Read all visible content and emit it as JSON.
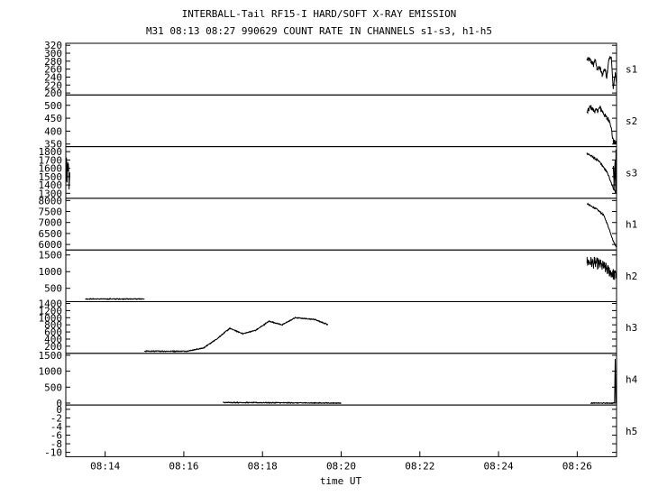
{
  "header": {
    "title": "INTERBALL-Tail RF15-I HARD/SOFT X-RAY EMISSION",
    "subtitle": "M31  08:13 08:27 990629  COUNT RATE IN CHANNELS s1-s3, h1-h5"
  },
  "chart_data": {
    "type": "line",
    "title": "INTERBALL-Tail RF15-I HARD/SOFT X-RAY EMISSION",
    "subtitle": "M31  08:13 08:27 990629  COUNT RATE IN CHANNELS s1-s3, h1-h5",
    "xlabel": "time UT",
    "x_range": [
      "08:13:00",
      "08:27:00"
    ],
    "x_ticks": [
      "08:14",
      "08:16",
      "08:18",
      "08:20",
      "08:22",
      "08:24",
      "08:26"
    ],
    "grid": false,
    "panels": [
      {
        "name": "s1",
        "ylim": [
          195,
          325
        ],
        "yticks": [
          "320",
          "300",
          "280",
          "260",
          "240",
          "220",
          "200"
        ],
        "tick_values": [
          320,
          300,
          280,
          260,
          240,
          220,
          200
        ],
        "series": [
          {
            "noise": 6,
            "points": [
              [
                "08:26:15",
                284
              ],
              [
                "08:26:20",
                283
              ],
              [
                "08:26:25",
                270
              ],
              [
                "08:26:27",
                286
              ],
              [
                "08:26:30",
                262
              ],
              [
                "08:26:35",
                262
              ],
              [
                "08:26:38",
                245
              ],
              [
                "08:26:42",
                262
              ],
              [
                "08:26:45",
                240
              ],
              [
                "08:26:48",
                284
              ],
              [
                "08:26:52",
                290
              ],
              [
                "08:26:55",
                210
              ],
              [
                "08:26:58",
                250
              ],
              [
                "08:27:00",
                222
              ]
            ]
          }
        ]
      },
      {
        "name": "s2",
        "ylim": [
          340,
          540
        ],
        "yticks": [
          "500",
          "450",
          "400",
          "350"
        ],
        "tick_values": [
          500,
          450,
          400,
          350
        ],
        "series": [
          {
            "noise": 10,
            "points": [
              [
                "08:26:15",
                470
              ],
              [
                "08:26:20",
                495
              ],
              [
                "08:26:25",
                480
              ],
              [
                "08:26:30",
                478
              ],
              [
                "08:26:35",
                490
              ],
              [
                "08:26:40",
                470
              ],
              [
                "08:26:45",
                450
              ],
              [
                "08:26:50",
                440
              ],
              [
                "08:26:55",
                360
              ],
              [
                "08:27:00",
                352
              ]
            ]
          }
        ]
      },
      {
        "name": "s3",
        "ylim": [
          1240,
          1860
        ],
        "yticks": [
          "1800",
          "1700",
          "1600",
          "1500",
          "1400",
          "1300"
        ],
        "tick_values": [
          1800,
          1700,
          1600,
          1500,
          1400,
          1300
        ],
        "series": [
          {
            "noise": 280,
            "points": [
              [
                "08:13:00",
                1550
              ],
              [
                "08:13:06",
                1550
              ]
            ]
          },
          {
            "noise": 12,
            "points": [
              [
                "08:26:15",
                1780
              ],
              [
                "08:26:25",
                1730
              ],
              [
                "08:26:35",
                1670
              ],
              [
                "08:26:40",
                1610
              ],
              [
                "08:26:45",
                1560
              ],
              [
                "08:26:50",
                1470
              ],
              [
                "08:26:55",
                1360
              ],
              [
                "08:27:00",
                1300
              ]
            ]
          },
          {
            "noise": 280,
            "points": [
              [
                "08:26:55",
                1550
              ],
              [
                "08:27:00",
                1550
              ]
            ]
          }
        ]
      },
      {
        "name": "h1",
        "ylim": [
          5750,
          8100
        ],
        "yticks": [
          "8000",
          "7500",
          "7000",
          "6500",
          "6000"
        ],
        "tick_values": [
          8000,
          7500,
          7000,
          6500,
          6000
        ],
        "series": [
          {
            "noise": 30,
            "points": [
              [
                "08:26:15",
                7850
              ],
              [
                "08:26:30",
                7600
              ],
              [
                "08:26:40",
                7350
              ],
              [
                "08:26:45",
                7000
              ],
              [
                "08:26:50",
                6600
              ],
              [
                "08:26:55",
                6150
              ],
              [
                "08:27:00",
                5880
              ]
            ]
          }
        ]
      },
      {
        "name": "h2",
        "ylim": [
          100,
          1650
        ],
        "yticks": [
          "1500",
          "1000",
          "500"
        ],
        "tick_values": [
          1500,
          1000,
          500
        ],
        "series": [
          {
            "noise": 10,
            "points": [
              [
                "08:13:30",
                180
              ],
              [
                "08:15:00",
                180
              ]
            ]
          },
          {
            "noise": 180,
            "points": [
              [
                "08:26:15",
                1300
              ],
              [
                "08:26:30",
                1250
              ],
              [
                "08:26:40",
                1150
              ],
              [
                "08:26:50",
                1000
              ],
              [
                "08:27:00",
                850
              ]
            ]
          }
        ]
      },
      {
        "name": "h3",
        "ylim": [
          0,
          1450
        ],
        "yticks": [
          "1400",
          "1200",
          "1000",
          "800",
          "600",
          "400",
          "200"
        ],
        "tick_values": [
          1400,
          1200,
          1000,
          800,
          600,
          400,
          200
        ],
        "series": [
          {
            "noise": 10,
            "points": [
              [
                "08:15:00",
                60
              ],
              [
                "08:16:05",
                60
              ],
              [
                "08:16:30",
                150
              ],
              [
                "08:16:50",
                400
              ],
              [
                "08:17:10",
                700
              ],
              [
                "08:17:30",
                550
              ],
              [
                "08:17:50",
                650
              ],
              [
                "08:18:10",
                900
              ],
              [
                "08:18:30",
                800
              ],
              [
                "08:18:50",
                1000
              ],
              [
                "08:19:20",
                950
              ],
              [
                "08:19:40",
                800
              ]
            ]
          }
        ]
      },
      {
        "name": "h4",
        "ylim": [
          -60,
          1560
        ],
        "yticks": [
          "1500",
          "1000",
          "500",
          "0"
        ],
        "tick_values": [
          1500,
          1000,
          500,
          0
        ],
        "series": [
          {
            "noise": 10,
            "points": [
              [
                "08:17:00",
                20
              ],
              [
                "08:20:00",
                0
              ]
            ]
          },
          {
            "noise": 10,
            "points": [
              [
                "08:26:20",
                0
              ],
              [
                "08:26:57",
                0
              ],
              [
                "08:26:58",
                1380
              ],
              [
                "08:26:59",
                0
              ]
            ]
          }
        ]
      },
      {
        "name": "h5",
        "ylim": [
          -11,
          1
        ],
        "yticks": [
          "-10",
          "-8",
          "-6",
          "-4",
          "-2",
          "0"
        ],
        "tick_values": [
          -10,
          -8,
          -6,
          -4,
          -2,
          0
        ],
        "series": []
      }
    ]
  }
}
